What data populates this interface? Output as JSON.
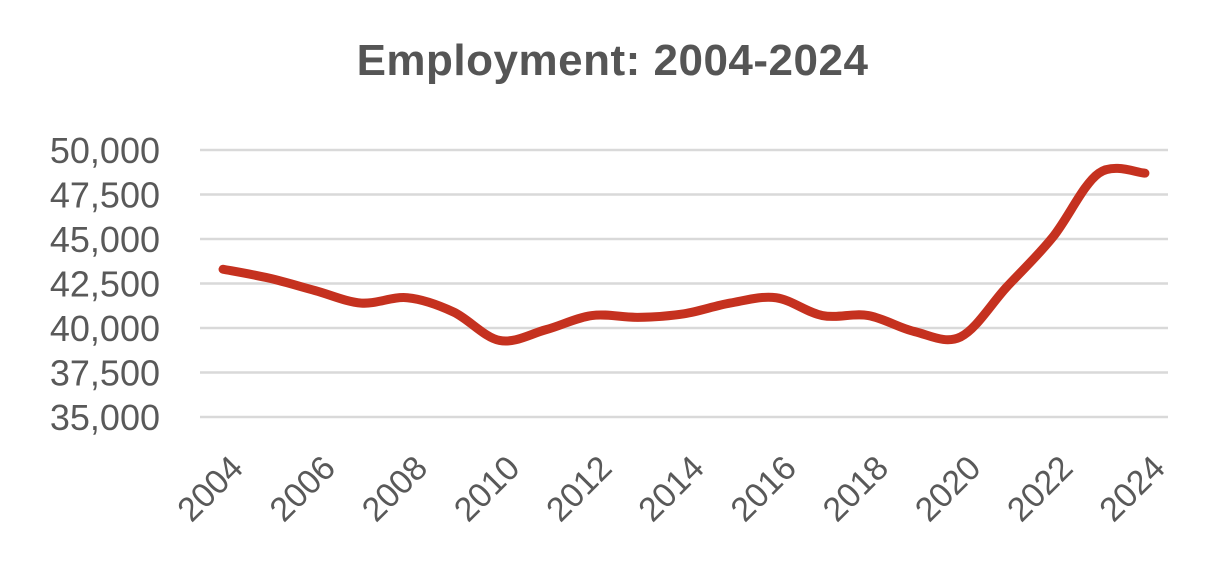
{
  "chart_data": {
    "type": "line",
    "title": "Employment: 2004-2024",
    "xlabel": "",
    "ylabel": "",
    "ylim": [
      35000,
      50000
    ],
    "yticks": [
      35000,
      37500,
      40000,
      42500,
      45000,
      47500,
      50000
    ],
    "ytick_labels": [
      "35,000",
      "37,500",
      "40,000",
      "42,500",
      "45,000",
      "47,500",
      "50,000"
    ],
    "xtick_labels": [
      "2004",
      "2006",
      "2008",
      "2010",
      "2012",
      "2014",
      "2016",
      "2018",
      "2020",
      "2022",
      "2024"
    ],
    "grid": true,
    "legend": "none",
    "series": [
      {
        "color": "#c5311f",
        "x": [
          2004,
          2005,
          2006,
          2007,
          2008,
          2009,
          2010,
          2011,
          2012,
          2013,
          2014,
          2015,
          2016,
          2017,
          2018,
          2019,
          2020,
          2021,
          2022,
          2023,
          2024
        ],
        "values": [
          43300,
          42800,
          42100,
          41400,
          41700,
          40900,
          39300,
          39900,
          40700,
          40600,
          40800,
          41400,
          41700,
          40700,
          40700,
          39800,
          39500,
          42300,
          45100,
          48700,
          48700
        ]
      }
    ]
  }
}
